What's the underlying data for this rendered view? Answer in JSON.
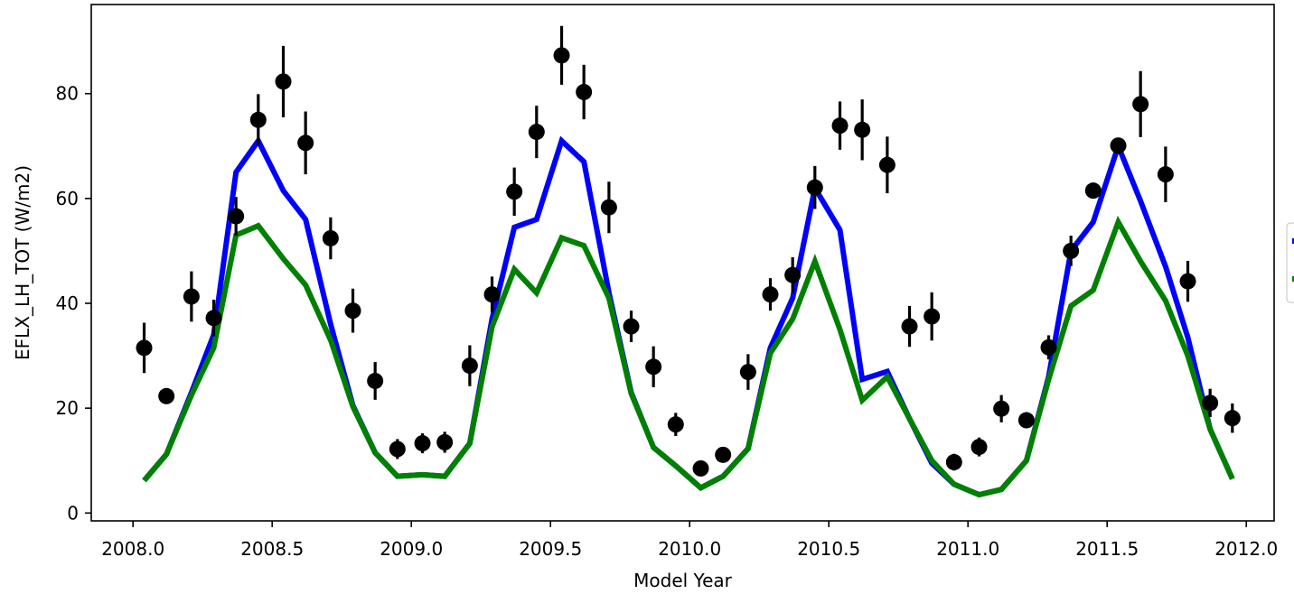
{
  "chart_data": {
    "type": "line",
    "xlabel": "Model Year",
    "ylabel": "EFLX_LH_TOT (W/m2)",
    "xlim": [
      2007.85,
      2012.1
    ],
    "ylim": [
      -1.5,
      97
    ],
    "x_ticks": [
      2008.0,
      2008.5,
      2009.0,
      2009.5,
      2010.0,
      2010.5,
      2011.0,
      2011.5,
      2012.0
    ],
    "x_tick_labels": [
      "2008.0",
      "2008.5",
      "2009.0",
      "2009.5",
      "2010.0",
      "2010.5",
      "2011.0",
      "2011.5",
      "2012.0"
    ],
    "y_ticks": [
      0,
      20,
      40,
      60,
      80
    ],
    "y_tick_labels": [
      "0",
      "20",
      "40",
      "60",
      "80"
    ],
    "legend_position": "right (clipped)",
    "series": [
      {
        "color": "#0000ff",
        "style": "line",
        "x": [
          2008.04,
          2008.12,
          2008.21,
          2008.29,
          2008.37,
          2008.45,
          2008.54,
          2008.62,
          2008.71,
          2008.79,
          2008.87,
          2008.95,
          2009.04,
          2009.12,
          2009.21,
          2009.29,
          2009.37,
          2009.45,
          2009.54,
          2009.62,
          2009.71,
          2009.79,
          2009.87,
          2009.95,
          2010.04,
          2010.12,
          2010.21,
          2010.29,
          2010.37,
          2010.45,
          2010.54,
          2010.62,
          2010.71,
          2010.79,
          2010.87,
          2010.95,
          2011.04,
          2011.12,
          2011.21,
          2011.29,
          2011.37,
          2011.45,
          2011.54,
          2011.62,
          2011.71,
          2011.79,
          2011.87,
          2011.95
        ],
        "y": [
          6.2,
          11.2,
          23.0,
          34.0,
          65.0,
          71.0,
          61.5,
          56.0,
          36.0,
          20.5,
          11.5,
          7.0,
          7.3,
          7.0,
          13.3,
          37.0,
          54.5,
          56.0,
          71.0,
          67.0,
          42.0,
          23.0,
          12.5,
          9.0,
          4.8,
          7.0,
          12.3,
          31.5,
          41.0,
          62.0,
          54.0,
          25.5,
          27.0,
          18.0,
          9.5,
          5.5,
          3.5,
          4.5,
          10.0,
          26.0,
          50.0,
          55.5,
          70.0,
          59.5,
          47.0,
          33.5,
          16.0,
          6.5
        ]
      },
      {
        "color": "#008000",
        "style": "line",
        "x": [
          2008.04,
          2008.12,
          2008.21,
          2008.29,
          2008.37,
          2008.45,
          2008.54,
          2008.62,
          2008.71,
          2008.79,
          2008.87,
          2008.95,
          2009.04,
          2009.12,
          2009.21,
          2009.29,
          2009.37,
          2009.45,
          2009.54,
          2009.62,
          2009.71,
          2009.79,
          2009.87,
          2009.95,
          2010.04,
          2010.12,
          2010.21,
          2010.29,
          2010.37,
          2010.45,
          2010.54,
          2010.62,
          2010.71,
          2010.79,
          2010.87,
          2010.95,
          2011.04,
          2011.12,
          2011.21,
          2011.29,
          2011.37,
          2011.45,
          2011.54,
          2011.62,
          2011.71,
          2011.79,
          2011.87,
          2011.95
        ],
        "y": [
          6.2,
          11.2,
          22.5,
          31.5,
          53.0,
          54.8,
          48.5,
          43.5,
          33.0,
          20.3,
          11.5,
          7.0,
          7.3,
          7.0,
          13.3,
          35.5,
          46.5,
          42.0,
          52.5,
          51.0,
          41.0,
          22.8,
          12.5,
          9.0,
          4.8,
          7.0,
          12.3,
          30.5,
          37.0,
          48.0,
          35.0,
          21.5,
          26.0,
          18.0,
          10.0,
          5.5,
          3.5,
          4.5,
          10.0,
          25.5,
          39.5,
          42.5,
          55.5,
          48.0,
          40.5,
          30.0,
          16.0,
          6.5
        ]
      },
      {
        "color": "#000000",
        "style": "errorbar",
        "x": [
          2008.04,
          2008.12,
          2008.21,
          2008.29,
          2008.37,
          2008.45,
          2008.54,
          2008.62,
          2008.71,
          2008.79,
          2008.87,
          2008.95,
          2009.04,
          2009.12,
          2009.21,
          2009.29,
          2009.37,
          2009.45,
          2009.54,
          2009.62,
          2009.71,
          2009.79,
          2009.87,
          2009.95,
          2010.04,
          2010.12,
          2010.21,
          2010.29,
          2010.37,
          2010.45,
          2010.54,
          2010.62,
          2010.71,
          2010.79,
          2010.87,
          2010.95,
          2011.04,
          2011.12,
          2011.21,
          2011.29,
          2011.37,
          2011.45,
          2011.54,
          2011.62,
          2011.71,
          2011.79,
          2011.87,
          2011.95
        ],
        "y": [
          31.5,
          22.3,
          41.3,
          37.2,
          56.6,
          75.0,
          82.3,
          70.6,
          52.4,
          38.6,
          25.2,
          12.2,
          13.3,
          13.5,
          28.1,
          41.7,
          61.3,
          72.7,
          87.3,
          80.3,
          58.3,
          35.6,
          27.9,
          16.9,
          8.5,
          11.1,
          26.9,
          41.7,
          45.4,
          62.1,
          73.9,
          73.1,
          66.4,
          35.6,
          37.5,
          9.7,
          12.6,
          19.9,
          17.7,
          31.6,
          50.0,
          61.5,
          70.1,
          78.0,
          64.6,
          44.2,
          21.0,
          18.1
        ],
        "err": [
          4.8,
          0.9,
          4.8,
          3.5,
          3.7,
          4.9,
          6.8,
          6.0,
          4.0,
          4.2,
          3.6,
          1.9,
          1.9,
          2.0,
          3.9,
          3.4,
          4.6,
          5.0,
          5.6,
          5.2,
          4.9,
          3.0,
          3.9,
          2.2,
          0.8,
          1.4,
          3.4,
          3.1,
          3.4,
          4.1,
          4.6,
          5.8,
          5.4,
          3.9,
          4.6,
          1.6,
          1.8,
          2.6,
          1.5,
          2.3,
          2.9,
          1.5,
          1.0,
          6.3,
          5.3,
          3.9,
          2.7,
          2.8
        ]
      }
    ]
  }
}
